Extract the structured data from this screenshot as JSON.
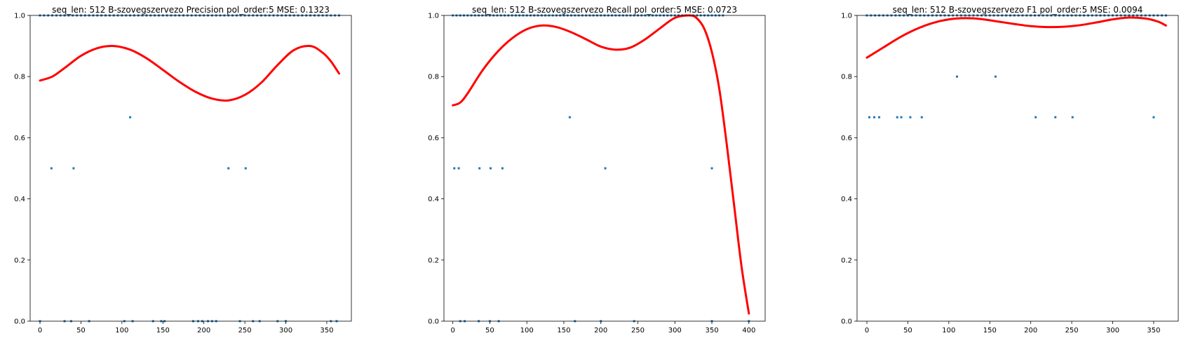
{
  "figure": {
    "background": "#ffffff",
    "point_color": "#1f77b4",
    "curve_color": "#ff0000"
  },
  "chart_data": [
    {
      "type": "scatter",
      "title": "seq_len: 512    B-szovegszervezo   Precision   pol_order:5   MSE: 0.1323",
      "xlim": [
        -12,
        380
      ],
      "ylim": [
        0,
        1
      ],
      "xticks": [
        0,
        50,
        100,
        150,
        200,
        250,
        300,
        350
      ],
      "yticks": [
        0.0,
        0.2,
        0.4,
        0.6,
        0.8,
        1.0
      ],
      "xtick_labels": [
        "0",
        "50",
        "100",
        "150",
        "200",
        "250",
        "300",
        "350"
      ],
      "ytick_labels": [
        "0.0",
        "0.2",
        "0.4",
        "0.6",
        "0.8",
        "1.0"
      ],
      "grid": false,
      "series": [
        {
          "kind": "points",
          "x": [
            0,
            5,
            10,
            15,
            20,
            25,
            30,
            35,
            40,
            45,
            50,
            55,
            60,
            65,
            70,
            75,
            80,
            85,
            90,
            95,
            100,
            105,
            110,
            115,
            120,
            125,
            130,
            135,
            140,
            145,
            150,
            155,
            160,
            165,
            170,
            175,
            180,
            185,
            190,
            195,
            200,
            205,
            210,
            215,
            220,
            225,
            230,
            235,
            240,
            245,
            250,
            255,
            260,
            265,
            270,
            275,
            280,
            285,
            290,
            295,
            300,
            305,
            310,
            315,
            320,
            325,
            330,
            335,
            340,
            345,
            350,
            355,
            360,
            365,
            14,
            41,
            110,
            230,
            251,
            0,
            30,
            38,
            60,
            103,
            113,
            138,
            148,
            152,
            187,
            193,
            198,
            205,
            210,
            215,
            244,
            260,
            268,
            290,
            300,
            355,
            362
          ],
          "y": [
            1,
            1,
            1,
            1,
            1,
            1,
            1,
            1,
            1,
            1,
            1,
            1,
            1,
            1,
            1,
            1,
            1,
            1,
            1,
            1,
            1,
            1,
            1,
            1,
            1,
            1,
            1,
            1,
            1,
            1,
            1,
            1,
            1,
            1,
            1,
            1,
            1,
            1,
            1,
            1,
            1,
            1,
            1,
            1,
            1,
            1,
            1,
            1,
            1,
            1,
            1,
            1,
            1,
            1,
            1,
            1,
            1,
            1,
            1,
            1,
            1,
            1,
            1,
            1,
            1,
            1,
            1,
            1,
            1,
            1,
            1,
            1,
            1,
            1,
            0.5,
            0.5,
            0.667,
            0.5,
            0.5,
            0,
            0,
            0,
            0,
            0,
            0,
            0,
            0,
            0,
            0,
            0,
            0,
            0,
            0,
            0,
            0,
            0,
            0,
            0,
            0,
            0,
            0
          ]
        },
        {
          "kind": "fit-curve",
          "x": [
            0,
            15,
            30,
            50,
            70,
            90,
            110,
            130,
            150,
            170,
            190,
            210,
            230,
            250,
            270,
            290,
            310,
            330,
            345,
            355,
            365
          ],
          "y": [
            0.787,
            0.8,
            0.828,
            0.868,
            0.893,
            0.9,
            0.888,
            0.86,
            0.822,
            0.783,
            0.75,
            0.728,
            0.722,
            0.74,
            0.78,
            0.838,
            0.887,
            0.9,
            0.878,
            0.85,
            0.81
          ]
        }
      ]
    },
    {
      "type": "scatter",
      "title": "seq_len: 512    B-szovegszervezo   Recall   pol_order:5   MSE: 0.0723",
      "xlim": [
        -12,
        422
      ],
      "ylim": [
        0,
        1
      ],
      "xticks": [
        0,
        50,
        100,
        150,
        200,
        250,
        300,
        350,
        400
      ],
      "yticks": [
        0.0,
        0.2,
        0.4,
        0.6,
        0.8,
        1.0
      ],
      "xtick_labels": [
        "0",
        "50",
        "100",
        "150",
        "200",
        "250",
        "300",
        "350",
        "400"
      ],
      "ytick_labels": [
        "0.0",
        "0.2",
        "0.4",
        "0.6",
        "0.8",
        "1.0"
      ],
      "grid": false,
      "series": [
        {
          "kind": "points",
          "x": [
            0,
            5,
            10,
            15,
            20,
            25,
            30,
            35,
            40,
            45,
            50,
            55,
            60,
            65,
            70,
            75,
            80,
            85,
            90,
            95,
            100,
            105,
            110,
            115,
            120,
            125,
            130,
            135,
            140,
            145,
            150,
            155,
            160,
            165,
            170,
            175,
            180,
            185,
            190,
            195,
            200,
            205,
            210,
            215,
            220,
            225,
            230,
            235,
            240,
            245,
            250,
            255,
            260,
            265,
            270,
            275,
            280,
            285,
            290,
            295,
            300,
            305,
            310,
            315,
            320,
            325,
            330,
            335,
            340,
            345,
            350,
            355,
            360,
            365,
            2,
            8,
            36,
            51,
            67,
            158,
            206,
            350,
            10,
            16,
            35,
            50,
            62,
            165,
            200,
            245,
            350,
            400
          ],
          "y": [
            1,
            1,
            1,
            1,
            1,
            1,
            1,
            1,
            1,
            1,
            1,
            1,
            1,
            1,
            1,
            1,
            1,
            1,
            1,
            1,
            1,
            1,
            1,
            1,
            1,
            1,
            1,
            1,
            1,
            1,
            1,
            1,
            1,
            1,
            1,
            1,
            1,
            1,
            1,
            1,
            1,
            1,
            1,
            1,
            1,
            1,
            1,
            1,
            1,
            1,
            1,
            1,
            1,
            1,
            1,
            1,
            1,
            1,
            1,
            1,
            1,
            1,
            1,
            1,
            1,
            1,
            1,
            1,
            1,
            1,
            1,
            1,
            1,
            1,
            0.5,
            0.5,
            0.5,
            0.5,
            0.5,
            0.667,
            0.5,
            0.5,
            0,
            0,
            0,
            0,
            0,
            0,
            0,
            0,
            0,
            0
          ]
        },
        {
          "kind": "fit-curve",
          "x": [
            0,
            10,
            20,
            40,
            60,
            80,
            100,
            120,
            140,
            160,
            180,
            200,
            220,
            240,
            260,
            280,
            300,
            320,
            330,
            340,
            350,
            360,
            370,
            380,
            390,
            400
          ],
          "y": [
            0.706,
            0.715,
            0.745,
            0.82,
            0.88,
            0.925,
            0.955,
            0.967,
            0.962,
            0.945,
            0.922,
            0.898,
            0.888,
            0.895,
            0.922,
            0.958,
            0.992,
            1.0,
            0.99,
            0.955,
            0.88,
            0.76,
            0.58,
            0.38,
            0.18,
            0.025
          ]
        }
      ]
    },
    {
      "type": "scatter",
      "title": "seq_len: 512    B-szovegszervezo   F1   pol_order:5   MSE: 0.0094",
      "xlim": [
        -12,
        380
      ],
      "ylim": [
        0,
        1
      ],
      "xticks": [
        0,
        50,
        100,
        150,
        200,
        250,
        300,
        350
      ],
      "yticks": [
        0.0,
        0.2,
        0.4,
        0.6,
        0.8,
        1.0
      ],
      "xtick_labels": [
        "0",
        "50",
        "100",
        "150",
        "200",
        "250",
        "300",
        "350"
      ],
      "ytick_labels": [
        "0.0",
        "0.2",
        "0.4",
        "0.6",
        "0.8",
        "1.0"
      ],
      "grid": false,
      "series": [
        {
          "kind": "points",
          "x": [
            0,
            5,
            10,
            15,
            20,
            25,
            30,
            35,
            40,
            45,
            50,
            55,
            60,
            65,
            70,
            75,
            80,
            85,
            90,
            95,
            100,
            105,
            110,
            115,
            120,
            125,
            130,
            135,
            140,
            145,
            150,
            155,
            160,
            165,
            170,
            175,
            180,
            185,
            190,
            195,
            200,
            205,
            210,
            215,
            220,
            225,
            230,
            235,
            240,
            245,
            250,
            255,
            260,
            265,
            270,
            275,
            280,
            285,
            290,
            295,
            300,
            305,
            310,
            315,
            320,
            325,
            330,
            335,
            340,
            345,
            350,
            355,
            360,
            365,
            3,
            9,
            15,
            37,
            42,
            53,
            67,
            206,
            230,
            251,
            350,
            110,
            157
          ],
          "y": [
            1,
            1,
            1,
            1,
            1,
            1,
            1,
            1,
            1,
            1,
            1,
            1,
            1,
            1,
            1,
            1,
            1,
            1,
            1,
            1,
            1,
            1,
            1,
            1,
            1,
            1,
            1,
            1,
            1,
            1,
            1,
            1,
            1,
            1,
            1,
            1,
            1,
            1,
            1,
            1,
            1,
            1,
            1,
            1,
            1,
            1,
            1,
            1,
            1,
            1,
            1,
            1,
            1,
            1,
            1,
            1,
            1,
            1,
            1,
            1,
            1,
            1,
            1,
            1,
            1,
            1,
            1,
            1,
            1,
            1,
            1,
            1,
            1,
            1,
            0.667,
            0.667,
            0.667,
            0.667,
            0.667,
            0.667,
            0.667,
            0.667,
            0.667,
            0.667,
            0.667,
            0.8,
            0.8
          ]
        },
        {
          "kind": "fit-curve",
          "x": [
            0,
            20,
            40,
            60,
            80,
            100,
            120,
            140,
            160,
            180,
            200,
            220,
            240,
            260,
            280,
            300,
            320,
            340,
            355,
            365
          ],
          "y": [
            0.862,
            0.895,
            0.928,
            0.955,
            0.975,
            0.987,
            0.991,
            0.988,
            0.98,
            0.972,
            0.965,
            0.962,
            0.963,
            0.968,
            0.977,
            0.987,
            0.993,
            0.99,
            0.98,
            0.967
          ]
        }
      ]
    }
  ]
}
